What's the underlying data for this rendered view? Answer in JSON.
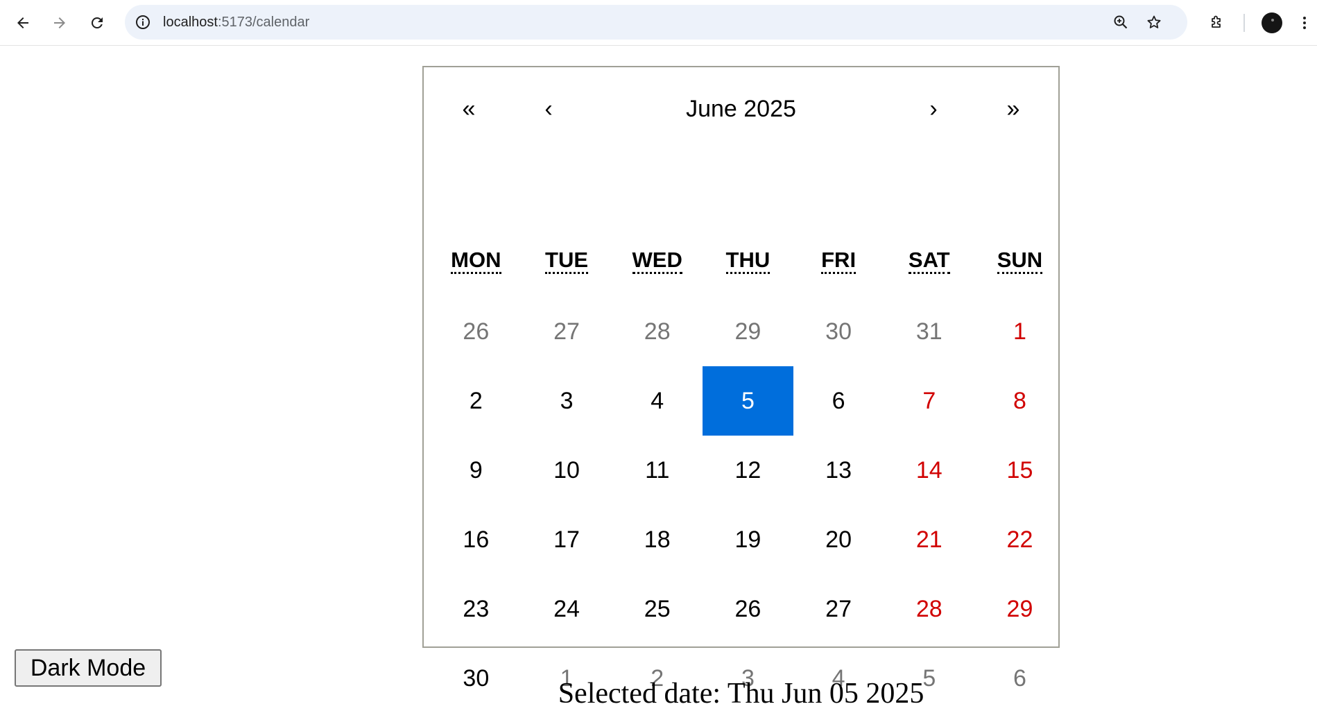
{
  "browser": {
    "url_host": "localhost",
    "url_path": ":5173/calendar",
    "icons": {
      "back": "arrow-left-icon",
      "forward": "arrow-right-icon",
      "reload": "reload-icon",
      "site_info": "info-icon",
      "zoom": "zoom-in-icon",
      "bookmark": "star-icon",
      "extensions": "puzzle-icon",
      "profile": "avatar",
      "menu": "kebab-menu-icon"
    }
  },
  "calendar": {
    "nav": {
      "prev2": "«",
      "prev": "‹",
      "label": "June 2025",
      "next": "›",
      "next2": "»"
    },
    "weekdays": [
      "MON",
      "TUE",
      "WED",
      "THU",
      "FRI",
      "SAT",
      "SUN"
    ],
    "days": [
      {
        "label": "26",
        "neighbor": true,
        "weekend": false
      },
      {
        "label": "27",
        "neighbor": true,
        "weekend": false
      },
      {
        "label": "28",
        "neighbor": true,
        "weekend": false
      },
      {
        "label": "29",
        "neighbor": true,
        "weekend": false
      },
      {
        "label": "30",
        "neighbor": true,
        "weekend": false
      },
      {
        "label": "31",
        "neighbor": true,
        "weekend": false
      },
      {
        "label": "1",
        "neighbor": false,
        "weekend": true
      },
      {
        "label": "2",
        "neighbor": false,
        "weekend": false
      },
      {
        "label": "3",
        "neighbor": false,
        "weekend": false
      },
      {
        "label": "4",
        "neighbor": false,
        "weekend": false
      },
      {
        "label": "5",
        "neighbor": false,
        "weekend": false,
        "active": true
      },
      {
        "label": "6",
        "neighbor": false,
        "weekend": false
      },
      {
        "label": "7",
        "neighbor": false,
        "weekend": true
      },
      {
        "label": "8",
        "neighbor": false,
        "weekend": true
      },
      {
        "label": "9",
        "neighbor": false,
        "weekend": false
      },
      {
        "label": "10",
        "neighbor": false,
        "weekend": false
      },
      {
        "label": "11",
        "neighbor": false,
        "weekend": false
      },
      {
        "label": "12",
        "neighbor": false,
        "weekend": false
      },
      {
        "label": "13",
        "neighbor": false,
        "weekend": false
      },
      {
        "label": "14",
        "neighbor": false,
        "weekend": true
      },
      {
        "label": "15",
        "neighbor": false,
        "weekend": true
      },
      {
        "label": "16",
        "neighbor": false,
        "weekend": false
      },
      {
        "label": "17",
        "neighbor": false,
        "weekend": false
      },
      {
        "label": "18",
        "neighbor": false,
        "weekend": false
      },
      {
        "label": "19",
        "neighbor": false,
        "weekend": false
      },
      {
        "label": "20",
        "neighbor": false,
        "weekend": false
      },
      {
        "label": "21",
        "neighbor": false,
        "weekend": true
      },
      {
        "label": "22",
        "neighbor": false,
        "weekend": true
      },
      {
        "label": "23",
        "neighbor": false,
        "weekend": false
      },
      {
        "label": "24",
        "neighbor": false,
        "weekend": false
      },
      {
        "label": "25",
        "neighbor": false,
        "weekend": false
      },
      {
        "label": "26",
        "neighbor": false,
        "weekend": false
      },
      {
        "label": "27",
        "neighbor": false,
        "weekend": false
      },
      {
        "label": "28",
        "neighbor": false,
        "weekend": true
      },
      {
        "label": "29",
        "neighbor": false,
        "weekend": true
      },
      {
        "label": "30",
        "neighbor": false,
        "weekend": false
      },
      {
        "label": "1",
        "neighbor": true,
        "weekend": false
      },
      {
        "label": "2",
        "neighbor": true,
        "weekend": false
      },
      {
        "label": "3",
        "neighbor": true,
        "weekend": false
      },
      {
        "label": "4",
        "neighbor": true,
        "weekend": false
      },
      {
        "label": "5",
        "neighbor": true,
        "weekend": false
      },
      {
        "label": "6",
        "neighbor": true,
        "weekend": false
      }
    ],
    "colors": {
      "active_bg": "#006edc",
      "weekend": "#d10000",
      "neighbor": "#757575"
    }
  },
  "page": {
    "dark_mode_label": "Dark Mode",
    "selected_text": "Selected date: Thu Jun 05 2025"
  }
}
